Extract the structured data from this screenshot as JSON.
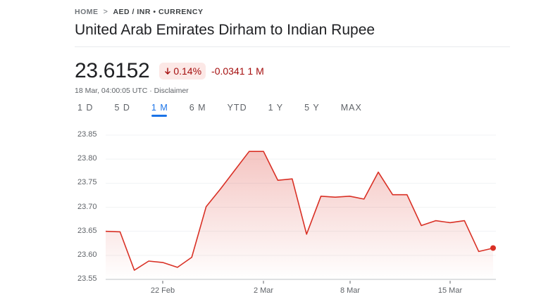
{
  "breadcrumb": {
    "home": "HOME",
    "separator": ">",
    "current": "AED / INR • CURRENCY"
  },
  "page_title": "United Arab Emirates Dirham to Indian Rupee",
  "quote": {
    "price": "23.6152",
    "change_pct": "0.14%",
    "change_direction_icon": "arrow-down-icon",
    "change_abs": "-0.0341 1 M",
    "timestamp": "18 Mar, 04:00:05 UTC",
    "separator": "·",
    "disclaimer": "Disclaimer"
  },
  "range_tabs": [
    {
      "label": "1 D",
      "active": false
    },
    {
      "label": "5 D",
      "active": false
    },
    {
      "label": "1 M",
      "active": true
    },
    {
      "label": "6 M",
      "active": false
    },
    {
      "label": "YTD",
      "active": false
    },
    {
      "label": "1 Y",
      "active": false
    },
    {
      "label": "5 Y",
      "active": false
    },
    {
      "label": "MAX",
      "active": false
    }
  ],
  "colors": {
    "line": "#d93025",
    "negative_text": "#a50e0e",
    "negative_bg": "#fce8e6",
    "active_tab": "#1a73e8"
  },
  "chart_data": {
    "type": "area",
    "title": "United Arab Emirates Dirham to Indian Rupee",
    "xlabel": "",
    "ylabel": "",
    "ylim": [
      23.55,
      23.85
    ],
    "yticks": [
      "23.85",
      "23.80",
      "23.75",
      "23.70",
      "23.65",
      "23.60",
      "23.55"
    ],
    "xticks": [
      "22 Feb",
      "2 Mar",
      "8 Mar",
      "15 Mar"
    ],
    "grid": true,
    "legend": "none",
    "series": [
      {
        "name": "AED / INR",
        "values": [
          23.65,
          23.649,
          23.569,
          23.588,
          23.585,
          23.575,
          23.596,
          23.701,
          23.738,
          23.777,
          23.816,
          23.816,
          23.756,
          23.759,
          23.644,
          23.723,
          23.721,
          23.723,
          23.717,
          23.773,
          23.726,
          23.726,
          23.662,
          23.672,
          23.668,
          23.672,
          23.608,
          23.615
        ]
      }
    ],
    "last_value": 23.6152
  }
}
